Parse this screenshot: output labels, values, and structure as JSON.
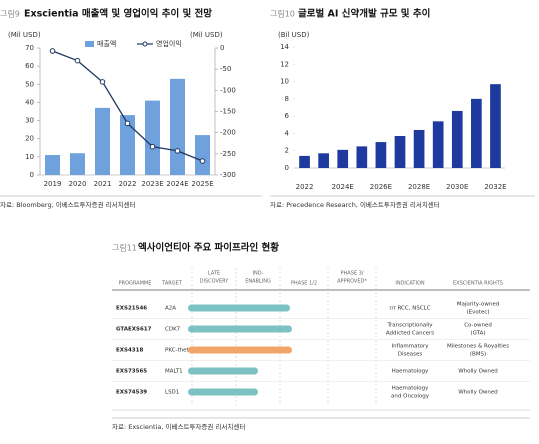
{
  "chart_data": [
    {
      "type": "bar",
      "label": "그림9",
      "title": "Exscientia 매출액 및 영업이익 추이 및 전망",
      "ylabel": "(Mil USD)",
      "y2label": "(Mil USD)",
      "categories": [
        "2019",
        "2020",
        "2021",
        "2022",
        "2023E",
        "2024E",
        "2025E"
      ],
      "series": [
        {
          "name": "매출액",
          "type": "bar",
          "color": "#6fa1dc",
          "values": [
            11,
            12,
            37,
            33,
            41,
            53,
            22
          ]
        },
        {
          "name": "영업이익",
          "type": "line",
          "axis": "y2",
          "color": "#1f3864",
          "values": [
            -7,
            -30,
            -80,
            -178,
            -233,
            -243,
            -267
          ]
        }
      ],
      "ylim": [
        0,
        70
      ],
      "yticks": [
        0,
        10,
        20,
        30,
        40,
        50,
        60,
        70
      ],
      "y2lim": [
        -300,
        0
      ],
      "y2ticks": [
        0,
        -50,
        -100,
        -150,
        -200,
        -250,
        -300
      ],
      "source": "자료: Bloomberg, 이베스트투자증권 리서치센터"
    },
    {
      "type": "bar",
      "label": "그림10",
      "title": "글로벌 AI 신약개발 규모 및 추이",
      "ylabel": "(Bil USD)",
      "categories": [
        "2022",
        null,
        "2024E",
        null,
        "2026E",
        null,
        "2028E",
        null,
        "2030E",
        null,
        "2032E"
      ],
      "color": "#1e3a9e",
      "values": [
        1.4,
        1.7,
        2.1,
        2.5,
        3.0,
        3.7,
        4.4,
        5.4,
        6.6,
        8.0,
        9.7
      ],
      "ylim": [
        0,
        14
      ],
      "yticks": [
        0,
        2,
        4,
        6,
        8,
        10,
        12,
        14
      ],
      "source": "자료: Precedence Research, 이베스트투자증권 리서치센터"
    }
  ],
  "pipeline": {
    "label": "그림11",
    "title": "엑사이언티아 주요 파이프라인 현황",
    "header": [
      [
        "PROGRAMME"
      ],
      [
        "TARGET"
      ],
      [
        "LATE",
        "DISCOVERY"
      ],
      [
        "IND-",
        "ENABLING"
      ],
      [
        "PHASE 1/2"
      ],
      [
        "PHASE 3/",
        "APPROVED*"
      ],
      [
        "INDICATION"
      ],
      [
        "EXSCIENTIA RIGHTS"
      ]
    ],
    "rows": [
      {
        "programme": "EXS21546",
        "target": "A2A",
        "indication": [
          "r/r RCC, NSCLC"
        ],
        "rights": [
          "Majority-owned",
          "(Evotec)"
        ]
      },
      {
        "programme": "GTAEXS617",
        "target": "CDK7",
        "indication": [
          "Transcriptionally",
          "Addicted Cancers"
        ],
        "rights": [
          "Co-owned",
          "(GTA)"
        ]
      },
      {
        "programme": "EXS4318",
        "target": "PKC-theta",
        "indication": [
          "Inflammatory",
          "Diseases"
        ],
        "rights": [
          "Milestones & Royalties",
          "(BMS)"
        ]
      },
      {
        "programme": "EXS73565",
        "target": "MALT1",
        "indication": [
          "Haematology"
        ],
        "rights": [
          "Wholly Owned"
        ]
      },
      {
        "programme": "EXS74539",
        "target": "LSD1",
        "indication": [
          "Haematology",
          "and Oncology"
        ],
        "rights": [
          "Wholly Owned"
        ]
      }
    ],
    "source": "자료: Exscientia, 이베스트투자증권 리서치센터"
  }
}
